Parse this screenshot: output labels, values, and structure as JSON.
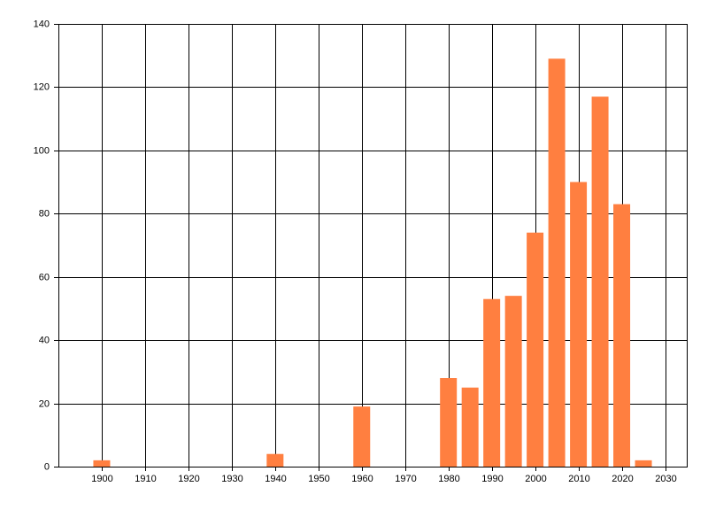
{
  "chart_data": {
    "type": "bar",
    "x": [
      1900,
      1940,
      1960,
      1980,
      1985,
      1990,
      1995,
      2000,
      2005,
      2010,
      2015,
      2020,
      2025
    ],
    "values": [
      2,
      4,
      19,
      28,
      25,
      53,
      54,
      74,
      129,
      90,
      117,
      83,
      2
    ],
    "color": "#ff7f40",
    "xlim": [
      1890,
      2035
    ],
    "xticks": [
      1900,
      1910,
      1920,
      1930,
      1940,
      1950,
      1960,
      1970,
      1980,
      1990,
      2000,
      2010,
      2020,
      2030
    ],
    "ylim": [
      0,
      140
    ],
    "yticks": [
      0,
      20,
      40,
      60,
      80,
      100,
      120,
      140
    ],
    "grid": true
  }
}
